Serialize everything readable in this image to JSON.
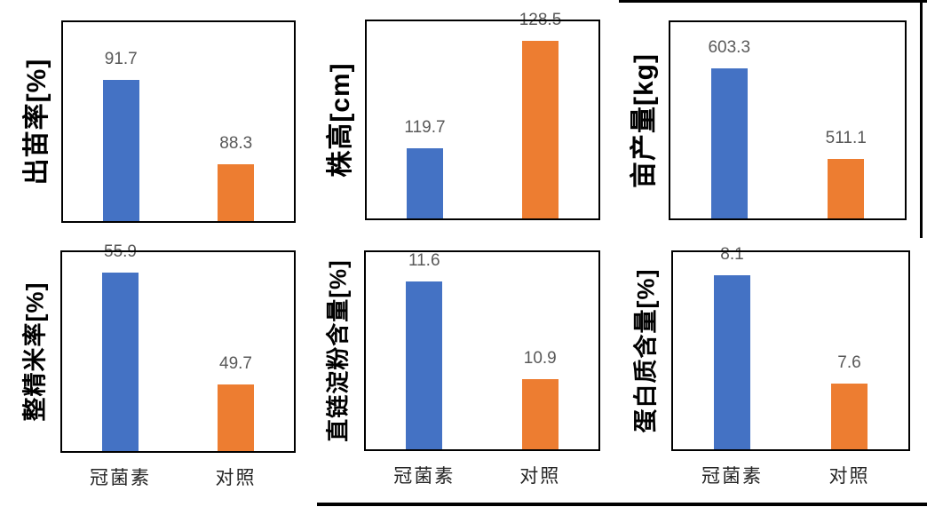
{
  "colors": {
    "bar_coronatine": "#4472C4",
    "bar_control": "#ED7D31",
    "data_label": "#595959",
    "category_label": "#262626",
    "plot_border": "#000000",
    "background": "#FFFFFF"
  },
  "categories": [
    "冠菌素",
    "对照"
  ],
  "chart_data": [
    {
      "type": "bar",
      "id": "emergence-rate",
      "ylabel": "出苗率[%]",
      "categories": [
        "冠菌素",
        "对照"
      ],
      "values": [
        91.7,
        88.3
      ],
      "value_labels": [
        "91.7",
        "88.3"
      ],
      "ylim": [
        86,
        94
      ],
      "grid": false,
      "show_category_labels": false
    },
    {
      "type": "bar",
      "id": "plant-height",
      "ylabel": "株高[cm]",
      "categories": [
        "冠菌素",
        "对照"
      ],
      "values": [
        119.7,
        128.5
      ],
      "value_labels": [
        "119.7",
        "128.5"
      ],
      "ylim": [
        114,
        130
      ],
      "grid": false,
      "show_category_labels": false
    },
    {
      "type": "bar",
      "id": "yield-per-mu",
      "ylabel": "亩产量[kg]",
      "categories": [
        "冠菌素",
        "对照"
      ],
      "values": [
        603.3,
        511.1
      ],
      "value_labels": [
        "603.3",
        "511.1"
      ],
      "ylim": [
        450,
        650
      ],
      "grid": false,
      "show_category_labels": false
    },
    {
      "type": "bar",
      "id": "head-rice-rate",
      "ylabel": "整精米率[%]",
      "categories": [
        "冠菌素",
        "对照"
      ],
      "values": [
        55.9,
        49.7
      ],
      "value_labels": [
        "55.9",
        "49.7"
      ],
      "ylim": [
        46,
        57
      ],
      "grid": false,
      "show_category_labels": true
    },
    {
      "type": "bar",
      "id": "amylose-content",
      "ylabel": "直链淀粉含量[%]",
      "categories": [
        "冠菌素",
        "对照"
      ],
      "values": [
        11.6,
        10.9
      ],
      "value_labels": [
        "11.6",
        "10.9"
      ],
      "ylim": [
        10.4,
        11.8
      ],
      "grid": false,
      "show_category_labels": true
    },
    {
      "type": "bar",
      "id": "protein-content",
      "ylabel": "蛋白质含量[%]",
      "categories": [
        "冠菌素",
        "对照"
      ],
      "values": [
        8.1,
        7.6
      ],
      "value_labels": [
        "8.1",
        "7.6"
      ],
      "ylim": [
        7.3,
        8.2
      ],
      "grid": false,
      "show_category_labels": true
    }
  ]
}
